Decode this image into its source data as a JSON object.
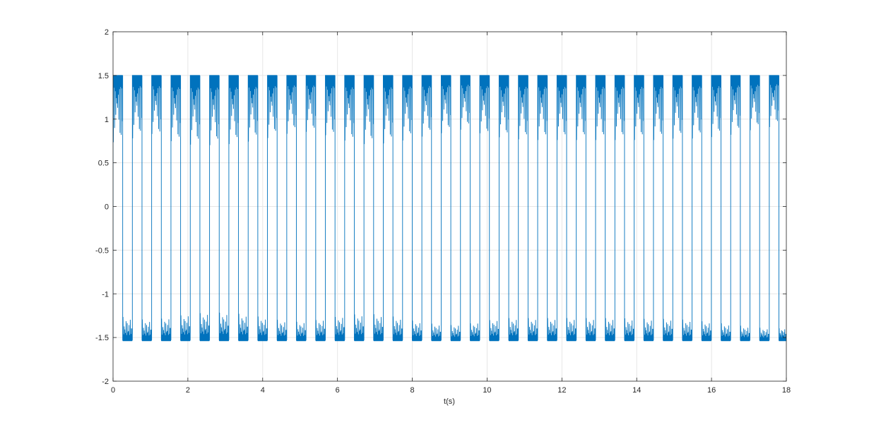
{
  "chart_data": {
    "type": "line",
    "title": "",
    "xlabel": "t(s)",
    "ylabel": "",
    "xlim": [
      0,
      18
    ],
    "ylim": [
      -2,
      2
    ],
    "xticks": [
      0,
      2,
      4,
      6,
      8,
      10,
      12,
      14,
      16,
      18
    ],
    "yticks": [
      -2,
      -1.5,
      -1,
      -0.5,
      0,
      0.5,
      1,
      1.5,
      2
    ],
    "xtick_labels": [
      "0",
      "2",
      "4",
      "6",
      "8",
      "10",
      "12",
      "14",
      "16",
      "18"
    ],
    "ytick_labels": [
      "-2",
      "-1.5",
      "-1",
      "-0.5",
      "0",
      "0.5",
      "1",
      "1.5",
      "2"
    ],
    "grid": true,
    "line_color": "#0072BD",
    "switching_period": 0.516,
    "high_level": 1.5,
    "low_level": -1.53,
    "upper_envelope_min": {
      "x": [
        0,
        0.5,
        1,
        1.5,
        2,
        2.5,
        3,
        3.5,
        4,
        4.5,
        5,
        5.5,
        6,
        6.5,
        7,
        7.5,
        8,
        8.5,
        9,
        9.5,
        10,
        10.5,
        11,
        11.5,
        12,
        12.5,
        13,
        13.5,
        14,
        14.5,
        15,
        15.5,
        16,
        16.5,
        17,
        17.5,
        18
      ],
      "y": [
        0.6,
        0.65,
        0.72,
        0.62,
        0.57,
        0.56,
        0.57,
        0.6,
        0.64,
        0.7,
        0.75,
        0.72,
        0.65,
        0.58,
        0.57,
        0.6,
        0.65,
        0.7,
        0.74,
        0.79,
        0.68,
        0.66,
        0.63,
        0.63,
        0.63,
        0.63,
        0.63,
        0.63,
        0.63,
        0.63,
        0.65,
        0.65,
        0.67,
        0.7,
        0.76,
        0.8,
        0.85
      ]
    },
    "lower_envelope_max": {
      "x": [
        0,
        0.5,
        1,
        1.5,
        2,
        2.5,
        3,
        3.5,
        4,
        4.5,
        5,
        5.5,
        6,
        6.5,
        7,
        7.5,
        8,
        8.5,
        9,
        9.5,
        10,
        10.5,
        11,
        11.5,
        12,
        12.5,
        13,
        13.5,
        14,
        14.5,
        15,
        15.5,
        16,
        16.5,
        17,
        17.5,
        18
      ],
      "y": [
        -1.22,
        -1.25,
        -1.28,
        -1.24,
        -1.2,
        -1.18,
        -1.18,
        -1.2,
        -1.24,
        -1.28,
        -1.3,
        -1.27,
        -1.23,
        -1.2,
        -1.2,
        -1.23,
        -1.28,
        -1.32,
        -1.34,
        -1.32,
        -1.28,
        -1.25,
        -1.25,
        -1.25,
        -1.25,
        -1.25,
        -1.25,
        -1.25,
        -1.26,
        -1.26,
        -1.26,
        -1.28,
        -1.3,
        -1.33,
        -1.36,
        -1.38,
        -1.38
      ]
    },
    "low_envelope_min_y": -1.54
  }
}
